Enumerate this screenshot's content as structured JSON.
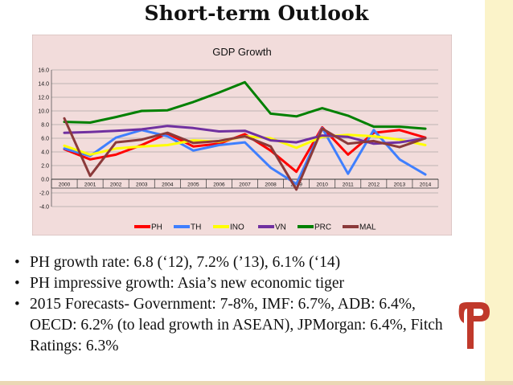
{
  "slide": {
    "title": "Short-term Outlook",
    "bullets": [
      "PH growth rate: 6.8 (‘12), 7.2% (’13), 6.1% (‘14)",
      "PH impressive growth: Asia’s new economic tiger",
      "2015 Forecasts- Government: 7-8%,  IMF: 6.7%, ADB: 6.4%, OECD: 6.2% (to lead growth in ASEAN), JPMorgan: 6.4%, Fitch Ratings: 6.3%"
    ],
    "logo_icon": "stylized-p-logo-icon",
    "logo_color": "#c0392b"
  },
  "chart_data": {
    "type": "line",
    "title": "GDP Growth",
    "xlabel": "",
    "ylabel": "",
    "categories": [
      "2000",
      "2001",
      "2002",
      "2003",
      "2004",
      "2005",
      "2006",
      "2007",
      "2008",
      "2009",
      "2010",
      "2011",
      "2012",
      "2013",
      "2014"
    ],
    "ylim": [
      -4.0,
      16.0
    ],
    "yticks": [
      "16.0",
      "14.0",
      "12.0",
      "10.0",
      "8.0",
      "6.0",
      "4.0",
      "2.0",
      "0.0",
      "-2.0",
      "-4.0"
    ],
    "grid": true,
    "legend_position": "bottom",
    "background": "#f2dcdb",
    "series": [
      {
        "name": "PH",
        "color": "#ff0000",
        "values": [
          4.4,
          2.9,
          3.6,
          5.0,
          6.7,
          4.8,
          5.2,
          6.6,
          4.2,
          1.1,
          7.6,
          3.6,
          6.8,
          7.2,
          6.1
        ]
      },
      {
        "name": "TH",
        "color": "#3f7fff",
        "values": [
          4.5,
          3.4,
          6.1,
          7.2,
          6.3,
          4.2,
          5.0,
          5.4,
          1.7,
          -0.7,
          7.5,
          0.8,
          7.2,
          2.9,
          0.7
        ]
      },
      {
        "name": "INO",
        "color": "#ffff00",
        "values": [
          4.9,
          3.6,
          4.5,
          4.8,
          5.0,
          5.7,
          5.5,
          6.3,
          6.0,
          4.6,
          6.2,
          6.5,
          6.3,
          5.8,
          5.0
        ]
      },
      {
        "name": "VN",
        "color": "#7030a0",
        "values": [
          6.8,
          6.9,
          7.1,
          7.3,
          7.8,
          7.5,
          7.0,
          7.1,
          5.7,
          5.4,
          6.4,
          6.2,
          5.2,
          5.4,
          6.0
        ]
      },
      {
        "name": "PRC",
        "color": "#008000",
        "values": [
          8.4,
          8.3,
          9.1,
          10.0,
          10.1,
          11.3,
          12.7,
          14.2,
          9.6,
          9.2,
          10.4,
          9.3,
          7.7,
          7.7,
          7.4
        ]
      },
      {
        "name": "MAL",
        "color": "#8b3a3a",
        "values": [
          8.9,
          0.5,
          5.4,
          5.8,
          6.8,
          5.3,
          5.6,
          6.3,
          4.8,
          -1.5,
          7.4,
          5.2,
          5.6,
          4.7,
          6.0
        ]
      }
    ]
  }
}
